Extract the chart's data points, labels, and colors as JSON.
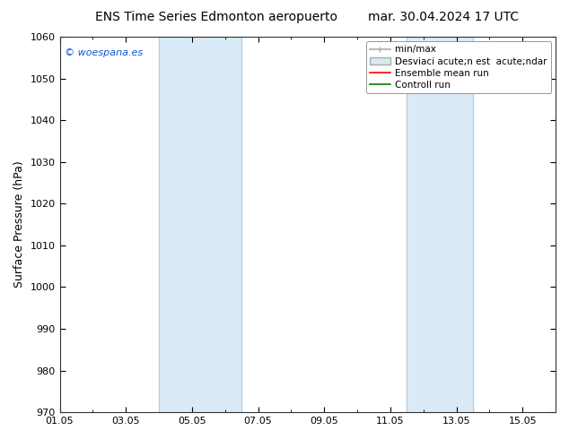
{
  "title_left": "ENS Time Series Edmonton aeropuerto",
  "title_right": "mar. 30.04.2024 17 UTC",
  "ylabel": "Surface Pressure (hPa)",
  "ylim": [
    970,
    1060
  ],
  "yticks": [
    970,
    980,
    990,
    1000,
    1010,
    1020,
    1030,
    1040,
    1050,
    1060
  ],
  "xlim_start": 0,
  "xlim_end": 15,
  "xtick_positions": [
    0,
    2,
    4,
    6,
    8,
    10,
    12,
    14
  ],
  "xtick_labels": [
    "01.05",
    "03.05",
    "05.05",
    "07.05",
    "09.05",
    "11.05",
    "13.05",
    "15.05"
  ],
  "shaded_bands": [
    {
      "xmin": 3.0,
      "xmax": 5.5
    },
    {
      "xmin": 10.5,
      "xmax": 12.5
    }
  ],
  "shade_color": "#daeaf7",
  "band_line_color": "#b0ccdf",
  "copyright_text": "© woespana.es",
  "legend_entries": [
    {
      "label": "min/max",
      "color": "#aaaaaa",
      "lw": 1.2
    },
    {
      "label": "Desviaci acute;n est  acute;ndar",
      "facecolor": "#d8e8f0",
      "edgecolor": "#aaaaaa"
    },
    {
      "label": "Ensemble mean run",
      "color": "red",
      "lw": 1.2
    },
    {
      "label": "Controll run",
      "color": "green",
      "lw": 1.2
    }
  ],
  "title_fontsize": 10,
  "ylabel_fontsize": 9,
  "tick_fontsize": 8,
  "legend_fontsize": 7.5,
  "copyright_fontsize": 8,
  "background_color": "#ffffff",
  "plot_bg_color": "#ffffff",
  "spine_color": "#333333",
  "spine_lw": 0.8
}
